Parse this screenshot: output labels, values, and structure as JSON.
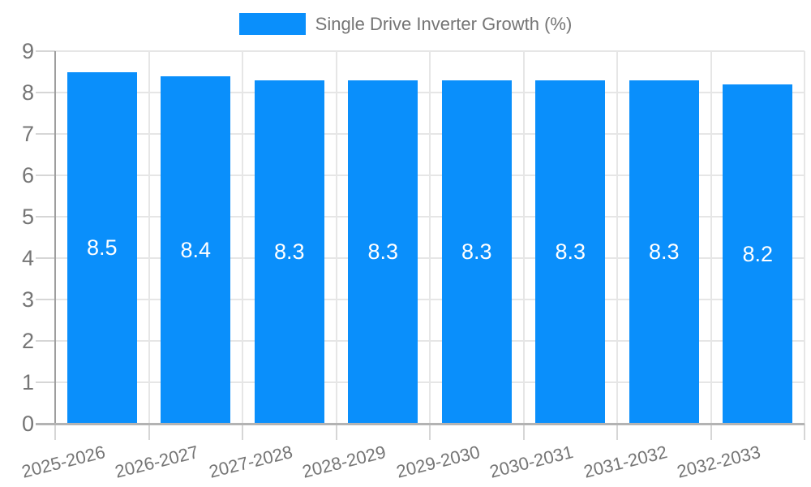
{
  "legend": {
    "label": "Single Drive Inverter Growth (%)"
  },
  "chart_data": {
    "type": "bar",
    "title": "Single Drive Inverter Growth (%)",
    "categories": [
      "2025-2026",
      "2026-2027",
      "2027-2028",
      "2028-2029",
      "2029-2030",
      "2030-2031",
      "2031-2032",
      "2032-2033"
    ],
    "values": [
      8.5,
      8.4,
      8.3,
      8.3,
      8.3,
      8.3,
      8.3,
      8.2
    ],
    "value_labels": [
      "8.5",
      "8.4",
      "8.3",
      "8.3",
      "8.3",
      "8.3",
      "8.3",
      "8.2"
    ],
    "xlabel": "",
    "ylabel": "",
    "ylim": [
      0,
      9
    ],
    "yticks": [
      0,
      1,
      2,
      3,
      4,
      5,
      6,
      7,
      8,
      9
    ],
    "grid": true,
    "legend_position": "top-center",
    "x_label_rotation_deg": -14,
    "colors": {
      "bar": "#0A8FFB",
      "value_label": "#FFFFFF",
      "axis_text": "#757575",
      "gridline": "#E6E6E6",
      "tick": "#D6D6D6",
      "axis_line": "#9E9E9E",
      "baseline": "#B3B3B3"
    }
  }
}
